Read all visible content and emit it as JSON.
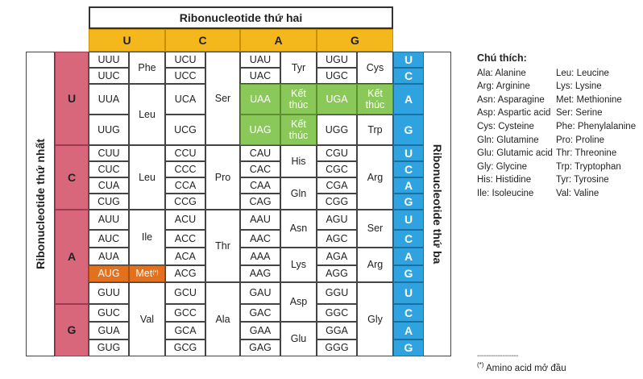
{
  "title_second": "Ribonucleotide thứ hai",
  "first_label": "Ribonucleotide thứ nhất",
  "third_label": "Ribonucleotide thứ ba",
  "second_bases": [
    "U",
    "C",
    "A",
    "G"
  ],
  "first_bases": [
    "U",
    "C",
    "A",
    "G"
  ],
  "third_bases": [
    "U",
    "C",
    "A",
    "G",
    "U",
    "C",
    "A",
    "G",
    "U",
    "C",
    "A",
    "G",
    "U",
    "C",
    "A",
    "G"
  ],
  "codons": [
    [
      "UUU",
      "UCU",
      "UAU",
      "UGU"
    ],
    [
      "UUC",
      "UCC",
      "UAC",
      "UGC"
    ],
    [
      "UUA",
      "UCA",
      "UAA",
      "UGA"
    ],
    [
      "UUG",
      "UCG",
      "UAG",
      "UGG"
    ],
    [
      "CUU",
      "CCU",
      "CAU",
      "CGU"
    ],
    [
      "CUC",
      "CCC",
      "CAC",
      "CGC"
    ],
    [
      "CUA",
      "CCA",
      "CAA",
      "CGA"
    ],
    [
      "CUG",
      "CCG",
      "CAG",
      "CGG"
    ],
    [
      "AUU",
      "ACU",
      "AAU",
      "AGU"
    ],
    [
      "AUC",
      "ACC",
      "AAC",
      "AGC"
    ],
    [
      "AUA",
      "ACA",
      "AAA",
      "AGA"
    ],
    [
      "AUG",
      "ACG",
      "AAG",
      "AGG"
    ],
    [
      "GUU",
      "GCU",
      "GAU",
      "GGU"
    ],
    [
      "GUC",
      "GCC",
      "GAC",
      "GGC"
    ],
    [
      "GUA",
      "GCA",
      "GAA",
      "GGA"
    ],
    [
      "GUG",
      "GCG",
      "GAG",
      "GGG"
    ]
  ],
  "amino": {
    "phe": "Phe",
    "leu1": "Leu",
    "leu2": "Leu",
    "ile": "Ile",
    "met": "Met",
    "met_mark": "(*)",
    "val": "Val",
    "ser1": "Ser",
    "pro": "Pro",
    "thr": "Thr",
    "ala": "Ala",
    "tyr": "Tyr",
    "stop1": "Kết thúc",
    "stop2": "Kết thúc",
    "his": "His",
    "gln": "Gln",
    "asn": "Asn",
    "lys": "Lys",
    "asp": "Asp",
    "glu": "Glu",
    "cys": "Cys",
    "stop3": "Kết thúc",
    "trp": "Trp",
    "arg1": "Arg",
    "ser2": "Ser",
    "arg2": "Arg",
    "gly": "Gly"
  },
  "legend": {
    "title": "Chú thích:",
    "left": [
      "Ala: Alanine",
      "Arg: Arginine",
      "Asn: Asparagine",
      "Asp: Aspartic acid",
      "Cys: Cysteine",
      "Gln: Glutamine",
      "Glu: Glutamic acid",
      "Gly: Glycine",
      "His: Histidine",
      "Ile: Isoleucine"
    ],
    "right": [
      "Leu: Leucine",
      "Lys: Lysine",
      "Met: Methionine",
      "Ser: Serine",
      "Phe: Phenylalanine",
      "Pro: Proline",
      "Thr: Threonine",
      "Trp: Tryptophan",
      "Tyr: Tyrosine",
      "Val: Valine"
    ],
    "divider": "------------------",
    "footnote_mark": "(*)",
    "footnote": " Amino acid mở đầu"
  },
  "colors": {
    "yellow": "#f4b71c",
    "pink": "#d8677c",
    "blue": "#2fa3df",
    "green": "#8bc85a",
    "orange": "#e2701d"
  }
}
